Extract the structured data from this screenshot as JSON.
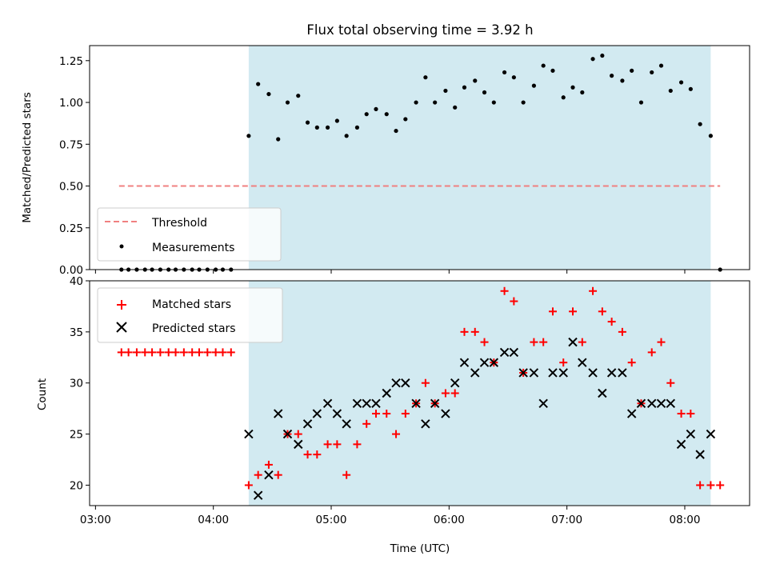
{
  "chart_data": [
    {
      "type": "scatter",
      "title": "Flux total observing time = 3.92 h",
      "xlabel": "",
      "ylabel": "Matched/Predicted stars",
      "ylim": [
        0,
        1.34
      ],
      "yticks": [
        "0.00",
        "0.25",
        "0.50",
        "0.75",
        "1.00",
        "1.25"
      ],
      "ytick_values": [
        0,
        0.25,
        0.5,
        0.75,
        1.0,
        1.25
      ],
      "xlim_hours": [
        2.95,
        8.55
      ],
      "shaded_span_hours": [
        4.3,
        8.22
      ],
      "threshold": {
        "name": "Threshold",
        "value": 0.5,
        "x_start_hours": 3.2,
        "x_end_hours": 8.3,
        "color": "#f08080"
      },
      "measurements": {
        "name": "Measurements",
        "color": "#000000",
        "x_hours": [
          3.22,
          3.28,
          3.35,
          3.42,
          3.48,
          3.55,
          3.62,
          3.68,
          3.75,
          3.82,
          3.88,
          3.95,
          4.02,
          4.08,
          4.15,
          4.3,
          4.38,
          4.47,
          4.55,
          4.63,
          4.72,
          4.8,
          4.88,
          4.97,
          5.05,
          5.13,
          5.22,
          5.3,
          5.38,
          5.47,
          5.55,
          5.63,
          5.72,
          5.8,
          5.88,
          5.97,
          6.05,
          6.13,
          6.22,
          6.3,
          6.38,
          6.47,
          6.55,
          6.63,
          6.72,
          6.8,
          6.88,
          6.97,
          7.05,
          7.13,
          7.22,
          7.3,
          7.38,
          7.47,
          7.55,
          7.63,
          7.72,
          7.8,
          7.88,
          7.97,
          8.05,
          8.13,
          8.22,
          8.3
        ],
        "values": [
          0,
          0,
          0,
          0,
          0,
          0,
          0,
          0,
          0,
          0,
          0,
          0,
          0,
          0,
          0,
          0.8,
          1.11,
          1.05,
          0.78,
          1.0,
          1.04,
          0.88,
          0.85,
          0.85,
          0.89,
          0.8,
          0.85,
          0.93,
          0.96,
          0.93,
          0.83,
          0.9,
          1.0,
          1.15,
          1.0,
          1.07,
          0.97,
          1.09,
          1.13,
          1.06,
          1.0,
          1.18,
          1.15,
          1.0,
          1.1,
          1.22,
          1.19,
          1.03,
          1.09,
          1.06,
          1.26,
          1.28,
          1.16,
          1.13,
          1.19,
          1.0,
          1.18,
          1.22,
          1.07,
          1.12,
          1.08,
          0.87,
          0.8,
          0
        ]
      },
      "legend": {
        "placement": "lower-left",
        "entries": [
          "Threshold",
          "Measurements"
        ]
      }
    },
    {
      "type": "scatter",
      "xlabel": "Time (UTC)",
      "ylabel": "Count",
      "ylim": [
        18,
        40
      ],
      "yticks": [
        "20",
        "25",
        "30",
        "35",
        "40"
      ],
      "ytick_values": [
        20,
        25,
        30,
        35,
        40
      ],
      "xlim_hours": [
        2.95,
        8.55
      ],
      "xticks": [
        "03:00",
        "04:00",
        "05:00",
        "06:00",
        "07:00",
        "08:00"
      ],
      "xtick_hours": [
        3,
        4,
        5,
        6,
        7,
        8
      ],
      "shaded_span_hours": [
        4.3,
        8.22
      ],
      "series": [
        {
          "name": "Matched stars",
          "marker": "plus",
          "color": "#ff0000",
          "x_hours": [
            3.22,
            3.28,
            3.35,
            3.42,
            3.48,
            3.55,
            3.62,
            3.68,
            3.75,
            3.82,
            3.88,
            3.95,
            4.02,
            4.08,
            4.15,
            4.3,
            4.38,
            4.47,
            4.55,
            4.63,
            4.72,
            4.8,
            4.88,
            4.97,
            5.05,
            5.13,
            5.22,
            5.3,
            5.38,
            5.47,
            5.55,
            5.63,
            5.72,
            5.8,
            5.88,
            5.97,
            6.05,
            6.13,
            6.22,
            6.3,
            6.38,
            6.47,
            6.55,
            6.63,
            6.72,
            6.8,
            6.88,
            6.97,
            7.05,
            7.13,
            7.22,
            7.3,
            7.38,
            7.47,
            7.55,
            7.63,
            7.72,
            7.8,
            7.88,
            7.97,
            8.05,
            8.13,
            8.22,
            8.3
          ],
          "values": [
            33,
            33,
            33,
            33,
            33,
            33,
            33,
            33,
            33,
            33,
            33,
            33,
            33,
            33,
            33,
            20,
            21,
            22,
            21,
            25,
            25,
            23,
            23,
            24,
            24,
            21,
            24,
            26,
            27,
            27,
            25,
            27,
            28,
            30,
            28,
            29,
            29,
            35,
            35,
            34,
            32,
            39,
            38,
            31,
            34,
            34,
            37,
            32,
            37,
            34,
            39,
            37,
            36,
            35,
            32,
            28,
            33,
            34,
            30,
            27,
            27,
            20,
            20,
            20
          ]
        },
        {
          "name": "Predicted stars",
          "marker": "x",
          "color": "#000000",
          "x_hours": [
            4.3,
            4.38,
            4.47,
            4.55,
            4.63,
            4.72,
            4.8,
            4.88,
            4.97,
            5.05,
            5.13,
            5.22,
            5.3,
            5.38,
            5.47,
            5.55,
            5.63,
            5.72,
            5.8,
            5.88,
            5.97,
            6.05,
            6.13,
            6.22,
            6.3,
            6.38,
            6.47,
            6.55,
            6.63,
            6.72,
            6.8,
            6.88,
            6.97,
            7.05,
            7.13,
            7.22,
            7.3,
            7.38,
            7.47,
            7.55,
            7.63,
            7.72,
            7.8,
            7.88,
            7.97,
            8.05,
            8.13,
            8.22
          ],
          "values": [
            25,
            19,
            21,
            27,
            25,
            24,
            26,
            27,
            28,
            27,
            26,
            28,
            28,
            28,
            29,
            30,
            30,
            28,
            26,
            28,
            27,
            30,
            32,
            31,
            32,
            32,
            33,
            33,
            31,
            31,
            28,
            31,
            31,
            34,
            32,
            31,
            29,
            31,
            31,
            27,
            28,
            28,
            28,
            28,
            24,
            25,
            23,
            25
          ]
        }
      ],
      "legend": {
        "placement": "upper-left",
        "entries": [
          "Matched stars",
          "Predicted stars"
        ]
      }
    }
  ]
}
